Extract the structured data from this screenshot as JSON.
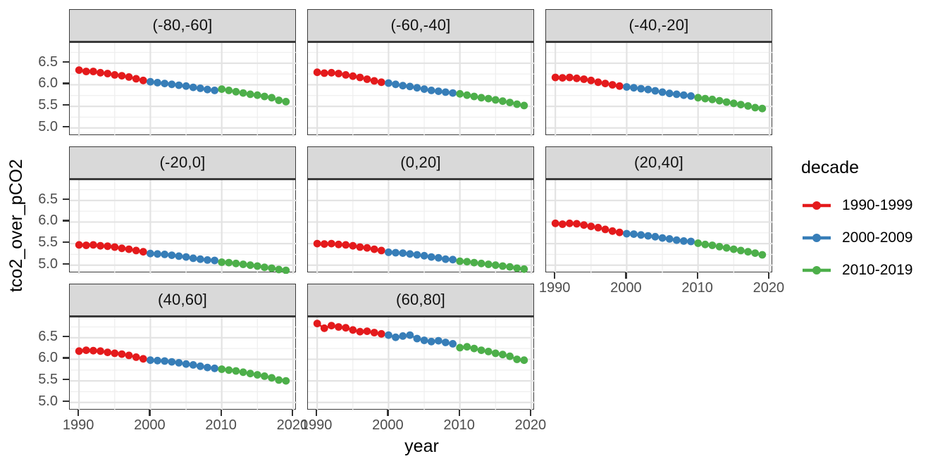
{
  "chart_data": {
    "type": "line",
    "xlabel": "year",
    "ylabel": "tco2_over_pCO2",
    "legend_title": "decade",
    "legend_position": "right",
    "grid": true,
    "x": [
      1990,
      1991,
      1992,
      1993,
      1994,
      1995,
      1996,
      1997,
      1998,
      1999,
      2000,
      2001,
      2002,
      2003,
      2004,
      2005,
      2006,
      2007,
      2008,
      2009,
      2010,
      2011,
      2012,
      2013,
      2014,
      2015,
      2016,
      2017,
      2018,
      2019
    ],
    "xlim": [
      1988.7,
      2020.5
    ],
    "ylim": [
      4.8,
      6.97
    ],
    "x_ticks": [
      1990,
      2000,
      2010,
      2020
    ],
    "x_minor_ticks": [
      1995,
      2005,
      2015
    ],
    "y_ticks": [
      5.0,
      5.5,
      6.0,
      6.5
    ],
    "y_minor_ticks": [
      5.25,
      5.75,
      6.25,
      6.75
    ],
    "series_meta": [
      {
        "name": "1990-1999",
        "color": "#e41a1c"
      },
      {
        "name": "2000-2009",
        "color": "#377eb8"
      },
      {
        "name": "2010-2019",
        "color": "#4daf4a"
      }
    ],
    "facets": [
      {
        "label": "(-80,-60]",
        "series": [
          {
            "name": "1990-1999",
            "values": [
              6.34,
              6.31,
              6.31,
              6.28,
              6.26,
              6.23,
              6.21,
              6.18,
              6.14,
              6.1
            ]
          },
          {
            "name": "2000-2009",
            "values": [
              6.07,
              6.05,
              6.03,
              6.01,
              5.99,
              5.97,
              5.94,
              5.92,
              5.89,
              5.87
            ]
          },
          {
            "name": "2010-2019",
            "values": [
              5.9,
              5.87,
              5.84,
              5.81,
              5.78,
              5.76,
              5.73,
              5.7,
              5.64,
              5.61
            ]
          }
        ]
      },
      {
        "label": "(-60,-40]",
        "series": [
          {
            "name": "1990-1999",
            "values": [
              6.29,
              6.27,
              6.28,
              6.26,
              6.23,
              6.2,
              6.17,
              6.13,
              6.09,
              6.06
            ]
          },
          {
            "name": "2000-2009",
            "values": [
              6.04,
              6.01,
              5.98,
              5.96,
              5.93,
              5.9,
              5.87,
              5.85,
              5.83,
              5.81
            ]
          },
          {
            "name": "2010-2019",
            "values": [
              5.79,
              5.76,
              5.73,
              5.7,
              5.68,
              5.65,
              5.62,
              5.59,
              5.55,
              5.52
            ]
          }
        ]
      },
      {
        "label": "(-40,-20]",
        "series": [
          {
            "name": "1990-1999",
            "values": [
              6.17,
              6.16,
              6.17,
              6.15,
              6.13,
              6.1,
              6.06,
              6.03,
              6.0,
              5.97
            ]
          },
          {
            "name": "2000-2009",
            "values": [
              5.95,
              5.93,
              5.91,
              5.89,
              5.86,
              5.83,
              5.8,
              5.78,
              5.76,
              5.74
            ]
          },
          {
            "name": "2010-2019",
            "values": [
              5.7,
              5.68,
              5.66,
              5.63,
              5.6,
              5.57,
              5.54,
              5.51,
              5.47,
              5.45
            ]
          }
        ]
      },
      {
        "label": "(-20,0]",
        "series": [
          {
            "name": "1990-1999",
            "values": [
              5.47,
              5.46,
              5.47,
              5.45,
              5.44,
              5.42,
              5.39,
              5.37,
              5.34,
              5.31
            ]
          },
          {
            "name": "2000-2009",
            "values": [
              5.27,
              5.26,
              5.25,
              5.23,
              5.21,
              5.19,
              5.16,
              5.14,
              5.12,
              5.11
            ]
          },
          {
            "name": "2010-2019",
            "values": [
              5.07,
              5.06,
              5.04,
              5.02,
              5.0,
              4.98,
              4.95,
              4.93,
              4.9,
              4.88
            ]
          }
        ]
      },
      {
        "label": "(0,20]",
        "series": [
          {
            "name": "1990-1999",
            "values": [
              5.5,
              5.49,
              5.5,
              5.48,
              5.47,
              5.45,
              5.42,
              5.4,
              5.37,
              5.34
            ]
          },
          {
            "name": "2000-2009",
            "values": [
              5.3,
              5.29,
              5.28,
              5.26,
              5.24,
              5.22,
              5.19,
              5.17,
              5.14,
              5.13
            ]
          },
          {
            "name": "2010-2019",
            "values": [
              5.09,
              5.08,
              5.06,
              5.04,
              5.02,
              5.0,
              4.98,
              4.96,
              4.93,
              4.91
            ]
          }
        ]
      },
      {
        "label": "(20,40]",
        "series": [
          {
            "name": "1990-1999",
            "values": [
              5.97,
              5.95,
              5.97,
              5.96,
              5.93,
              5.9,
              5.87,
              5.83,
              5.79,
              5.76
            ]
          },
          {
            "name": "2000-2009",
            "values": [
              5.73,
              5.72,
              5.7,
              5.68,
              5.66,
              5.63,
              5.61,
              5.58,
              5.56,
              5.55
            ]
          },
          {
            "name": "2010-2019",
            "values": [
              5.51,
              5.48,
              5.46,
              5.43,
              5.4,
              5.37,
              5.34,
              5.31,
              5.28,
              5.24
            ]
          }
        ]
      },
      {
        "label": "(40,60]",
        "series": [
          {
            "name": "1990-1999",
            "values": [
              6.19,
              6.21,
              6.2,
              6.19,
              6.16,
              6.14,
              6.12,
              6.09,
              6.05,
              6.01
            ]
          },
          {
            "name": "2000-2009",
            "values": [
              5.98,
              5.97,
              5.96,
              5.94,
              5.92,
              5.89,
              5.87,
              5.84,
              5.81,
              5.79
            ]
          },
          {
            "name": "2010-2019",
            "values": [
              5.77,
              5.75,
              5.73,
              5.7,
              5.67,
              5.64,
              5.61,
              5.57,
              5.52,
              5.5
            ]
          }
        ]
      },
      {
        "label": "(60,80]",
        "series": [
          {
            "name": "1990-1999",
            "values": [
              6.83,
              6.72,
              6.78,
              6.75,
              6.73,
              6.68,
              6.64,
              6.65,
              6.62,
              6.59
            ]
          },
          {
            "name": "2000-2009",
            "values": [
              6.56,
              6.51,
              6.54,
              6.56,
              6.48,
              6.44,
              6.41,
              6.43,
              6.39,
              6.36
            ]
          },
          {
            "name": "2010-2019",
            "values": [
              6.27,
              6.29,
              6.25,
              6.21,
              6.18,
              6.14,
              6.11,
              6.07,
              6.0,
              5.98
            ]
          }
        ]
      }
    ]
  },
  "colors": {
    "grid_major": "#e3e3e3",
    "grid_minor": "#efefef",
    "tick": "#333333",
    "tick_label": "#4d4d4d",
    "strip_bg": "#d9d9d9",
    "panel_border": "#3b3b3b"
  }
}
